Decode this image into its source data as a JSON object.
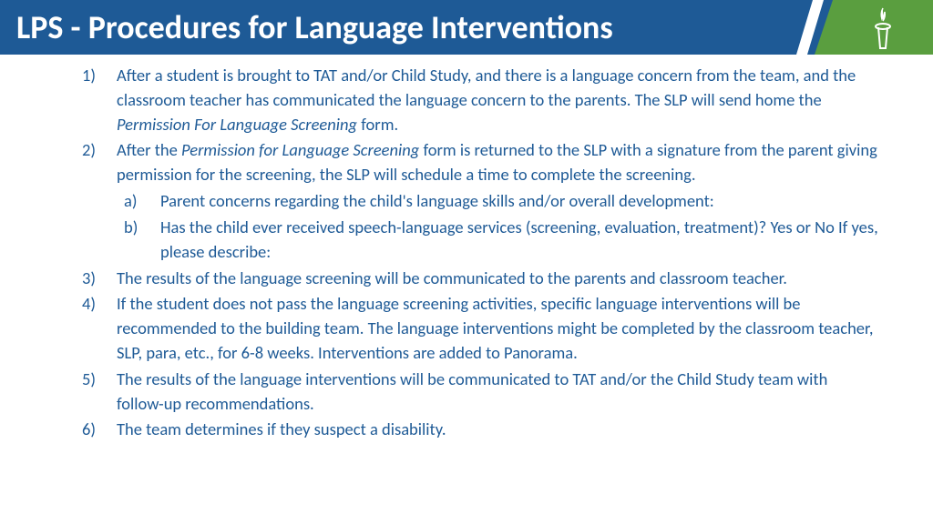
{
  "header": {
    "title": "LPS - Procedures for Language Interventions",
    "bg_color": "#1e5a96",
    "accent_color": "#5a9e3f",
    "title_color": "#ffffff",
    "title_fontsize": 36
  },
  "content": {
    "text_color": "#1e5a96",
    "fontsize": 18.5,
    "items": [
      {
        "pre": "After a student is brought to TAT and/or Child Study, and there is a language concern from the team, and the classroom teacher has communicated the language concern to the parents. The SLP will send home the ",
        "italic": "Permission For Language Screening",
        "post": " form."
      },
      {
        "pre": "After the ",
        "italic": "Permission for Language Screening",
        "post": " form is returned to the SLP with a signature from the parent giving permission for the screening, the SLP will schedule a time to complete the screening.",
        "sub": [
          "Parent concerns regarding the child's language skills and/or overall development:",
          "Has the child ever received speech-language services (screening, evaluation, treatment)? Yes or No If yes, please describe:"
        ]
      },
      {
        "pre": "The results of the language screening will be communicated to the parents and classroom teacher."
      },
      {
        "pre": "If the student does not pass the language screening activities, specific language interventions will be recommended to the building team. The language interventions might be completed by the classroom teacher, SLP, para, etc., for 6-8 weeks. Interventions are added to Panorama."
      },
      {
        "pre": "The results of the language interventions will be communicated to TAT and/or the Child Study team with follow-up recommendations."
      },
      {
        "pre": "The team determines if they suspect a disability."
      }
    ]
  }
}
